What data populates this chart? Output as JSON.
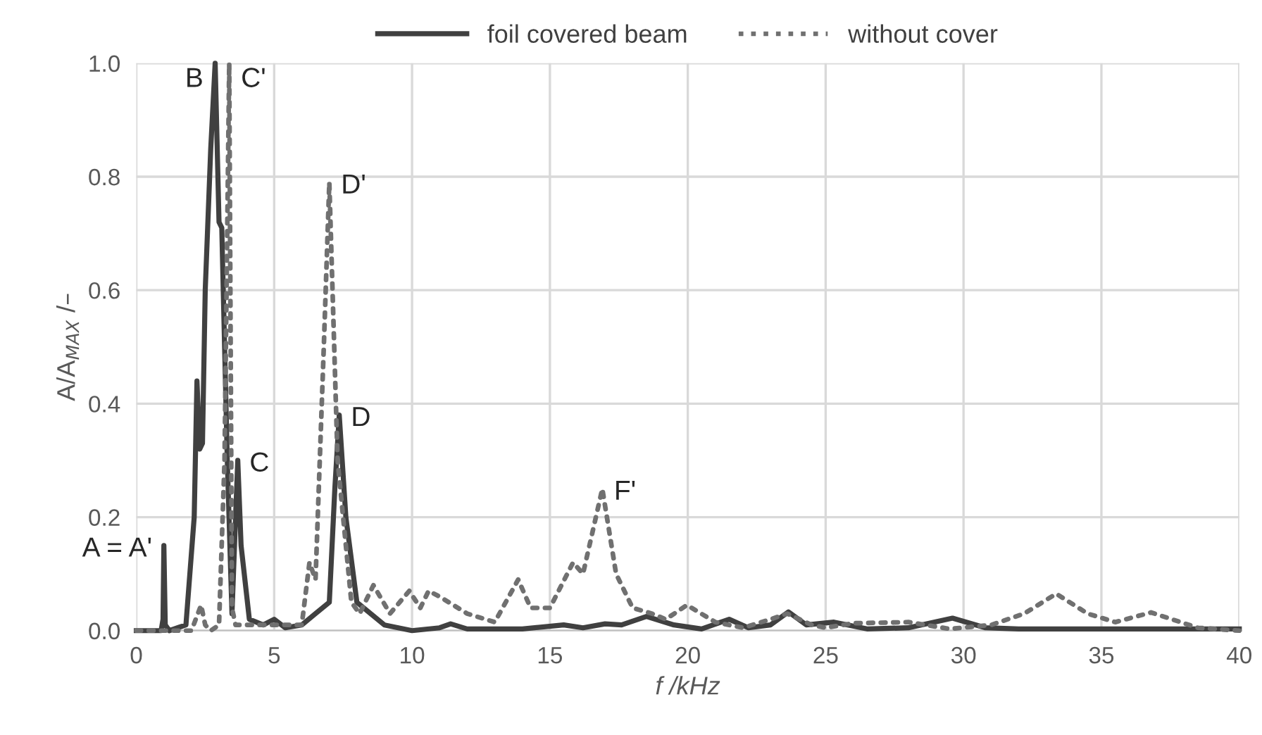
{
  "chart_data": {
    "type": "line",
    "xlabel": "f /kHz",
    "ylabel": "A/A$_{MAX}$ /–",
    "xlim": [
      0,
      40
    ],
    "ylim": [
      0,
      1
    ],
    "xticks": [
      0,
      5,
      10,
      15,
      20,
      25,
      30,
      35,
      40
    ],
    "yticks": [
      {
        "value": 0,
        "label": "0.0"
      },
      {
        "value": 0.2,
        "label": "0.2"
      },
      {
        "value": 0.4,
        "label": "0.4"
      },
      {
        "value": 0.6,
        "label": "0.6"
      },
      {
        "value": 0.8,
        "label": "0.8"
      },
      {
        "value": 1,
        "label": "1.0"
      }
    ],
    "grid": true,
    "legend": "top",
    "marker": "none",
    "series": [
      {
        "name": "foil covered beam",
        "color": "#404040",
        "line_style": "solid",
        "x": [
          0,
          0.9,
          0.97,
          1.0,
          1.05,
          1.2,
          1.8,
          2.1,
          2.2,
          2.3,
          2.4,
          2.5,
          2.7,
          2.86,
          3.0,
          3.1,
          3.3,
          3.47,
          3.6,
          3.68,
          3.8,
          4.1,
          4.6,
          5.0,
          5.4,
          6.0,
          6.5,
          7.0,
          7.2,
          7.36,
          7.6,
          8.0,
          9.0,
          10.0,
          11.0,
          11.4,
          12.0,
          14.0,
          15.5,
          16.2,
          17.0,
          17.6,
          18.5,
          19.5,
          20.5,
          21.5,
          22.2,
          23.0,
          23.65,
          24.3,
          25.3,
          26.5,
          28.0,
          29.6,
          30.8,
          32.0,
          40
        ],
        "values": [
          0,
          0,
          0.02,
          0.15,
          0.01,
          0,
          0.01,
          0.2,
          0.44,
          0.32,
          0.33,
          0.6,
          0.85,
          1.0,
          0.72,
          0.71,
          0.3,
          0.03,
          0.2,
          0.3,
          0.15,
          0.02,
          0.01,
          0.02,
          0.005,
          0.01,
          0.03,
          0.05,
          0.25,
          0.38,
          0.2,
          0.05,
          0.01,
          0.0,
          0.005,
          0.012,
          0.003,
          0.003,
          0.01,
          0.005,
          0.012,
          0.01,
          0.025,
          0.01,
          0.003,
          0.02,
          0.005,
          0.01,
          0.033,
          0.01,
          0.015,
          0.003,
          0.005,
          0.022,
          0.005,
          0.003,
          0.003
        ]
      },
      {
        "name": "without cover",
        "color": "#707070",
        "line_style": "dotted",
        "x": [
          0,
          2.0,
          2.35,
          2.5,
          2.7,
          3.0,
          3.2,
          3.37,
          3.47,
          3.6,
          4.0,
          5.0,
          6.0,
          6.28,
          6.5,
          6.8,
          7.0,
          7.3,
          7.8,
          8.1,
          8.6,
          9.2,
          9.9,
          10.3,
          10.6,
          11.0,
          12.0,
          13.0,
          13.85,
          14.3,
          15.0,
          15.84,
          16.2,
          16.9,
          17.4,
          18.0,
          18.7,
          19.2,
          19.97,
          21.0,
          22.0,
          23.0,
          23.6,
          24.5,
          25.0,
          26.0,
          28.0,
          29.5,
          31.0,
          32.2,
          33.36,
          34.5,
          35.5,
          36.8,
          38.5,
          40
        ],
        "values": [
          0,
          0,
          0.045,
          0.01,
          0,
          0.01,
          0.3,
          1.0,
          0.04,
          0.01,
          0.01,
          0.01,
          0.01,
          0.12,
          0.09,
          0.5,
          0.79,
          0.3,
          0.05,
          0.03,
          0.08,
          0.03,
          0.07,
          0.04,
          0.07,
          0.06,
          0.03,
          0.015,
          0.09,
          0.04,
          0.04,
          0.12,
          0.1,
          0.25,
          0.1,
          0.04,
          0.03,
          0.02,
          0.045,
          0.015,
          0.005,
          0.02,
          0.03,
          0.01,
          0.005,
          0.013,
          0.015,
          0.003,
          0.01,
          0.03,
          0.065,
          0.03,
          0.015,
          0.032,
          0.005,
          0
        ]
      }
    ],
    "annotations": [
      {
        "text": "A = A'",
        "x": 1.0,
        "y": 0.15
      },
      {
        "text": "B",
        "x": 2.86,
        "y": 1.0
      },
      {
        "text": "C'",
        "x": 3.37,
        "y": 1.0
      },
      {
        "text": "C",
        "x": 3.68,
        "y": 0.3
      },
      {
        "text": "D'",
        "x": 7.0,
        "y": 0.79
      },
      {
        "text": "D",
        "x": 7.36,
        "y": 0.38
      },
      {
        "text": "F'",
        "x": 16.9,
        "y": 0.25
      }
    ]
  }
}
